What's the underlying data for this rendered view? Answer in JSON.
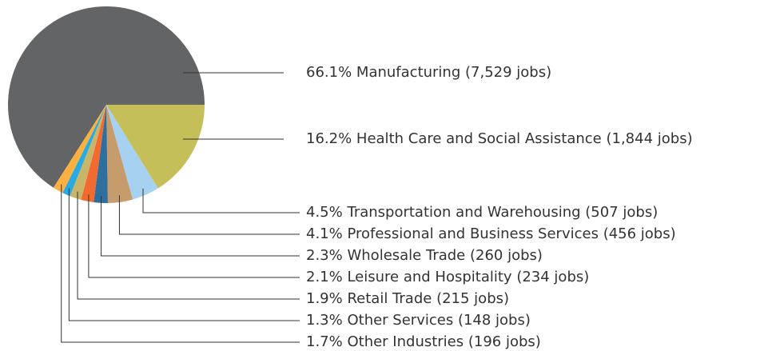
{
  "chart_data": {
    "type": "pie",
    "categories": [
      "Manufacturing",
      "Health Care and Social Assistance",
      "Transportation and Warehousing",
      "Professional and Business Services",
      "Wholesale Trade",
      "Leisure and Hospitality",
      "Retail Trade",
      "Other Services",
      "Other Industries"
    ],
    "values": [
      66.1,
      16.2,
      4.5,
      4.1,
      2.3,
      2.1,
      1.9,
      1.3,
      1.7
    ],
    "value_labels": [
      "66.1%",
      "16.2%",
      "4.5%",
      "4.1%",
      "2.3%",
      "2.1%",
      "1.9%",
      "1.3%",
      "1.7%"
    ],
    "jobs": [
      7529,
      1844,
      507,
      456,
      260,
      234,
      215,
      148,
      196
    ],
    "jobs_labels": [
      "(7,529 jobs)",
      "(1,844 jobs)",
      "(507 jobs)",
      "(456 jobs)",
      "(260 jobs)",
      "(234 jobs)",
      "(215 jobs)",
      "(148 jobs)",
      "(196 jobs)"
    ],
    "colors": [
      "#636466",
      "#c5bf5a",
      "#a6d1f0",
      "#c69c6d",
      "#2e6f9e",
      "#f26a30",
      "#c9b56a",
      "#29abe2",
      "#fbb040"
    ]
  }
}
